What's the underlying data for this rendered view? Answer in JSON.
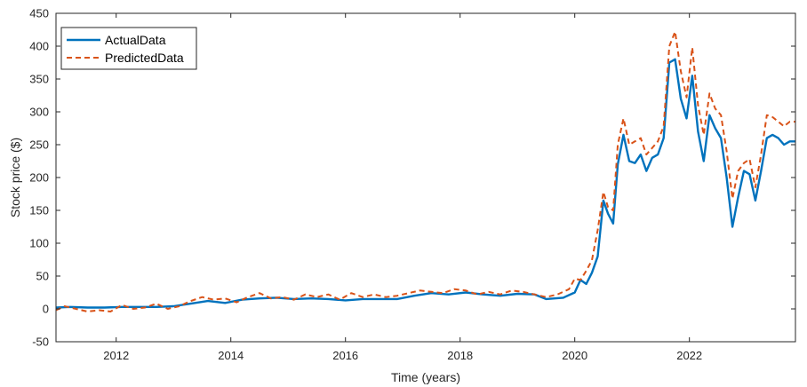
{
  "chart_data": {
    "type": "line",
    "title": "",
    "xlabel": "Time (years)",
    "ylabel": "Stock price ($)",
    "xlim": [
      2010.95,
      2023.85
    ],
    "ylim": [
      -50,
      450
    ],
    "xticks": [
      2012,
      2014,
      2016,
      2018,
      2020,
      2022
    ],
    "yticks": [
      -50,
      0,
      50,
      100,
      150,
      200,
      250,
      300,
      350,
      400,
      450
    ],
    "grid": false,
    "legend_position": "top-left",
    "series": [
      {
        "name": "ActualData",
        "color": "#0072BD",
        "style": "solid",
        "x": [
          2010.95,
          2011.2,
          2011.5,
          2011.8,
          2012.1,
          2012.4,
          2012.7,
          2013.0,
          2013.3,
          2013.6,
          2013.9,
          2014.2,
          2014.5,
          2014.8,
          2015.1,
          2015.4,
          2015.7,
          2016.0,
          2016.3,
          2016.6,
          2016.9,
          2017.2,
          2017.5,
          2017.8,
          2018.1,
          2018.4,
          2018.7,
          2019.0,
          2019.3,
          2019.5,
          2019.8,
          2020.0,
          2020.1,
          2020.2,
          2020.3,
          2020.4,
          2020.5,
          2020.58,
          2020.67,
          2020.75,
          2020.85,
          2020.95,
          2021.05,
          2021.15,
          2021.25,
          2021.35,
          2021.45,
          2021.55,
          2021.65,
          2021.75,
          2021.85,
          2021.95,
          2022.05,
          2022.15,
          2022.25,
          2022.35,
          2022.45,
          2022.55,
          2022.65,
          2022.75,
          2022.85,
          2022.95,
          2023.05,
          2023.15,
          2023.25,
          2023.35,
          2023.45,
          2023.55,
          2023.65,
          2023.75,
          2023.85
        ],
        "y": [
          2,
          3,
          2,
          2,
          3,
          3,
          3,
          4,
          8,
          12,
          9,
          14,
          16,
          17,
          15,
          16,
          15,
          13,
          15,
          15,
          15,
          20,
          24,
          22,
          25,
          22,
          20,
          23,
          22,
          15,
          17,
          25,
          44,
          38,
          55,
          80,
          165,
          145,
          130,
          220,
          265,
          225,
          222,
          235,
          210,
          230,
          235,
          260,
          375,
          380,
          320,
          290,
          355,
          270,
          225,
          295,
          275,
          260,
          200,
          125,
          170,
          210,
          205,
          165,
          210,
          260,
          265,
          260,
          250,
          255,
          255
        ]
      },
      {
        "name": "PredictedData",
        "color": "#D95319",
        "style": "dashed",
        "x": [
          2010.95,
          2011.1,
          2011.3,
          2011.5,
          2011.7,
          2011.9,
          2012.1,
          2012.3,
          2012.5,
          2012.7,
          2012.9,
          2013.1,
          2013.3,
          2013.5,
          2013.7,
          2013.9,
          2014.1,
          2014.3,
          2014.5,
          2014.7,
          2014.9,
          2015.1,
          2015.3,
          2015.5,
          2015.7,
          2015.9,
          2016.1,
          2016.3,
          2016.5,
          2016.7,
          2016.9,
          2017.1,
          2017.3,
          2017.5,
          2017.7,
          2017.9,
          2018.1,
          2018.3,
          2018.5,
          2018.7,
          2018.9,
          2019.1,
          2019.3,
          2019.5,
          2019.7,
          2019.9,
          2020.0,
          2020.1,
          2020.2,
          2020.3,
          2020.4,
          2020.5,
          2020.58,
          2020.67,
          2020.75,
          2020.85,
          2020.95,
          2021.05,
          2021.15,
          2021.25,
          2021.35,
          2021.45,
          2021.55,
          2021.65,
          2021.75,
          2021.85,
          2021.95,
          2022.05,
          2022.15,
          2022.25,
          2022.35,
          2022.45,
          2022.55,
          2022.65,
          2022.75,
          2022.85,
          2022.95,
          2023.05,
          2023.15,
          2023.25,
          2023.35,
          2023.45,
          2023.55,
          2023.65,
          2023.75,
          2023.85
        ],
        "y": [
          -2,
          4,
          0,
          -4,
          -2,
          -4,
          6,
          0,
          2,
          8,
          0,
          4,
          12,
          18,
          14,
          16,
          10,
          18,
          24,
          16,
          18,
          14,
          22,
          18,
          22,
          14,
          24,
          18,
          22,
          18,
          20,
          24,
          28,
          26,
          24,
          30,
          28,
          22,
          26,
          22,
          28,
          26,
          22,
          18,
          22,
          30,
          46,
          44,
          58,
          74,
          120,
          178,
          155,
          150,
          250,
          290,
          250,
          255,
          260,
          235,
          245,
          255,
          278,
          400,
          422,
          362,
          322,
          398,
          310,
          265,
          328,
          305,
          295,
          240,
          168,
          210,
          222,
          228,
          185,
          235,
          295,
          292,
          285,
          278,
          285,
          285
        ]
      }
    ]
  }
}
